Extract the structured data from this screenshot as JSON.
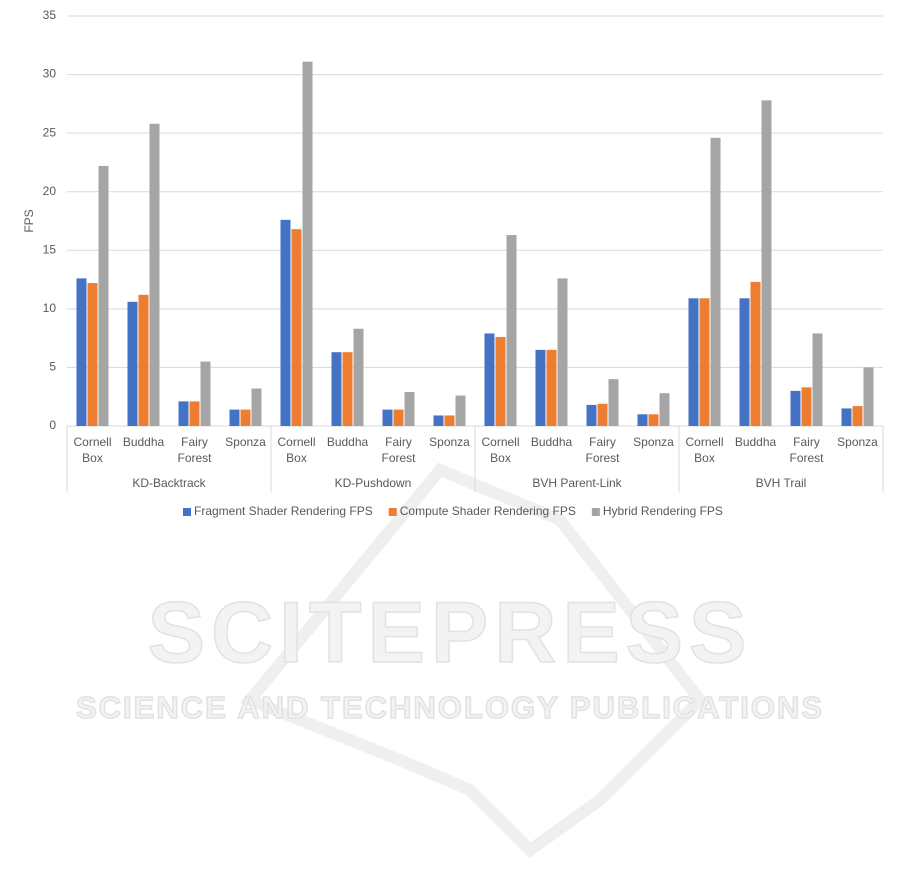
{
  "chart_data": {
    "type": "bar",
    "y_label": "FPS",
    "groups": [
      "KD-Backtrack",
      "KD-Pushdown",
      "BVH Parent-Link",
      "BVH Trail"
    ],
    "categories": [
      "Cornell Box",
      "Buddha",
      "Fairy Forest",
      "Sponza",
      "Cornell Box",
      "Buddha",
      "Fairy Forest",
      "Sponza",
      "Cornell Box",
      "Buddha",
      "Fairy Forest",
      "Sponza",
      "Cornell Box",
      "Buddha",
      "Fairy Forest",
      "Sponza"
    ],
    "series": [
      {
        "name": "Fragment Shader Rendering FPS",
        "color": "#4472c4",
        "values": [
          12.6,
          10.6,
          2.1,
          1.4,
          17.6,
          6.3,
          1.4,
          0.9,
          7.9,
          6.5,
          1.8,
          1.0,
          10.9,
          10.9,
          3.0,
          1.5
        ]
      },
      {
        "name": "Compute Shader Rendering FPS",
        "color": "#ed7d31",
        "values": [
          12.2,
          11.2,
          2.1,
          1.4,
          16.8,
          6.3,
          1.4,
          0.9,
          7.6,
          6.5,
          1.9,
          1.0,
          10.9,
          12.3,
          3.3,
          1.7
        ]
      },
      {
        "name": "Hybrid Rendering FPS",
        "color": "#a5a5a5",
        "values": [
          22.2,
          25.8,
          5.5,
          3.2,
          31.1,
          8.3,
          2.9,
          2.6,
          16.3,
          12.6,
          4.0,
          2.8,
          24.6,
          27.8,
          7.9,
          5.0
        ]
      }
    ],
    "ylim": [
      0,
      35
    ],
    "yticks": [
      0,
      5,
      10,
      15,
      20,
      25,
      30,
      35
    ],
    "grid": true,
    "legend": "bottom"
  },
  "watermark": {
    "title": "SCITEPRESS",
    "subtitle": "SCIENCE AND TECHNOLOGY PUBLICATIONS"
  }
}
